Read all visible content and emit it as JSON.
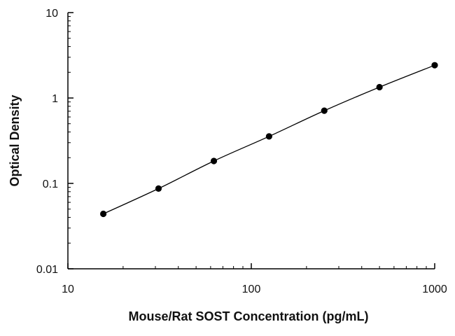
{
  "chart_data": {
    "type": "scatter",
    "title": "",
    "xlabel": "Mouse/Rat SOST Concentration (pg/mL)",
    "ylabel": "Optical Density",
    "x_scale": "log",
    "y_scale": "log",
    "xlim": [
      10,
      1000
    ],
    "ylim": [
      0.01,
      10
    ],
    "x_ticks": [
      10,
      100,
      1000
    ],
    "x_tick_labels": [
      "10",
      "100",
      "1000"
    ],
    "y_ticks": [
      0.01,
      0.1,
      1,
      10
    ],
    "y_tick_labels": [
      "0.01",
      "0.1",
      "1",
      "10"
    ],
    "grid": false,
    "series": [
      {
        "x": [
          15.6,
          31.2,
          62.5,
          125,
          250,
          500,
          1000
        ],
        "y": [
          0.044,
          0.087,
          0.183,
          0.355,
          0.71,
          1.34,
          2.42
        ]
      }
    ],
    "colors": {
      "points": "#000000",
      "line": "#000000",
      "axis": "#000000"
    }
  }
}
